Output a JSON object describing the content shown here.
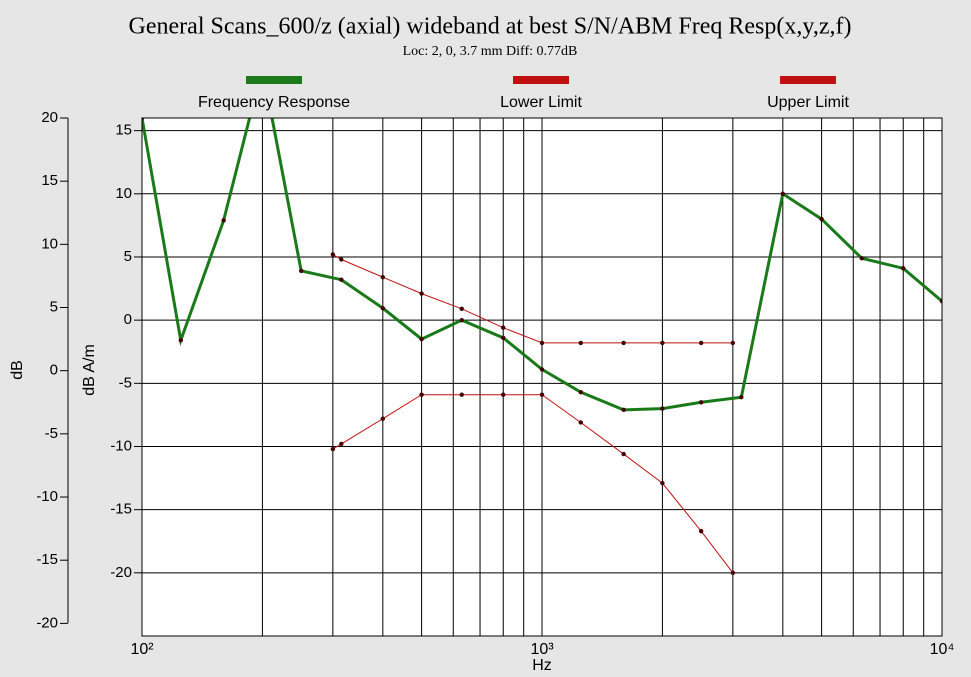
{
  "chart_data": {
    "type": "line",
    "title": "General Scans_600/z (axial) wideband at best S/N/ABM Freq Resp(x,y,z,f)",
    "subtitle": "Loc: 2, 0, 3.7 mm Diff: 0.77dB",
    "x_label": "Hz",
    "y_label": "dB A/m",
    "y2_label": "dB",
    "xscale": "log",
    "xlim": [
      100,
      10000
    ],
    "xticks": [
      {
        "value": 100,
        "label": "10²"
      },
      {
        "value": 1000,
        "label": "10³"
      },
      {
        "value": 10000,
        "label": "10⁴"
      }
    ],
    "xminorticks": [
      200,
      300,
      400,
      500,
      600,
      700,
      800,
      900,
      2000,
      3000,
      4000,
      5000,
      6000,
      7000,
      8000,
      9000
    ],
    "ylim": [
      -25,
      16
    ],
    "yticks": [
      -20,
      -15,
      -10,
      -5,
      0,
      5,
      10,
      15
    ],
    "y2lim": [
      -21,
      20
    ],
    "y2ticks": [
      -20,
      -15,
      -10,
      -5,
      0,
      5,
      10,
      15,
      20
    ],
    "grid": true,
    "legend": "top",
    "series": [
      {
        "name": "Frequency Response",
        "color": "#1a7a1a",
        "width": 3,
        "x": [
          100,
          125,
          160,
          200,
          250,
          315,
          400,
          500,
          630,
          800,
          1000,
          1250,
          1600,
          2000,
          2500,
          3150,
          4000,
          5000,
          6300,
          8000,
          10000
        ],
        "values": [
          16,
          -1.6,
          7.9,
          20,
          3.9,
          3.2,
          0.95,
          -1.5,
          0,
          -1.4,
          -3.9,
          -5.7,
          -7.1,
          -7.0,
          -6.5,
          -6.1,
          10,
          8,
          4.9,
          4.1,
          1.5
        ]
      },
      {
        "name": "Lower Limit",
        "color": "#c01010",
        "width": 1,
        "x": [
          300,
          315,
          400,
          500,
          630,
          800,
          1000,
          1250,
          1600,
          2000,
          2500,
          3000
        ],
        "values": [
          -10.2,
          -9.8,
          -7.8,
          -5.9,
          -5.9,
          -5.9,
          -5.9,
          -8.1,
          -10.6,
          -12.9,
          -16.7,
          -20
        ]
      },
      {
        "name": "Upper Limit",
        "color": "#c01010",
        "width": 1,
        "x": [
          300,
          315,
          400,
          500,
          630,
          800,
          1000,
          1250,
          1600,
          2000,
          2500,
          3000
        ],
        "values": [
          5.2,
          4.8,
          3.4,
          2.1,
          0.9,
          -0.6,
          -1.8,
          -1.8,
          -1.8,
          -1.8,
          -1.8,
          -1.8
        ]
      }
    ]
  }
}
